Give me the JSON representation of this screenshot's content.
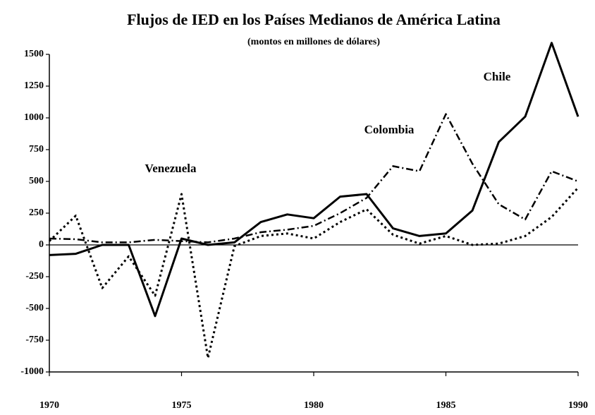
{
  "chart_data": {
    "type": "line",
    "title": "Flujos de IED en los Países Medianos de América Latina",
    "subtitle": "(montos en millones de dólares)",
    "x": [
      1970,
      1971,
      1972,
      1973,
      1974,
      1975,
      1976,
      1977,
      1978,
      1979,
      1980,
      1981,
      1982,
      1983,
      1984,
      1985,
      1986,
      1987,
      1988,
      1989,
      1990
    ],
    "series": [
      {
        "name": "Chile",
        "color": "#000000",
        "dash": "solid",
        "values": [
          -80,
          -70,
          0,
          0,
          -560,
          50,
          0,
          20,
          180,
          240,
          210,
          380,
          400,
          130,
          70,
          90,
          270,
          810,
          1010,
          1590,
          1010
        ]
      },
      {
        "name": "Colombia",
        "color": "#000000",
        "dash": "dashdot",
        "values": [
          50,
          45,
          20,
          20,
          40,
          30,
          20,
          50,
          100,
          120,
          150,
          250,
          370,
          620,
          580,
          1030,
          640,
          320,
          200,
          580,
          500
        ]
      },
      {
        "name": "Venezuela",
        "color": "#000000",
        "dash": "dot",
        "values": [
          30,
          230,
          -340,
          -90,
          -400,
          400,
          -890,
          -10,
          70,
          90,
          50,
          180,
          280,
          80,
          10,
          70,
          0,
          10,
          70,
          220,
          450
        ]
      }
    ],
    "xlim": [
      1970,
      1990
    ],
    "xticks": [
      1970,
      1975,
      1980,
      1985,
      1990
    ],
    "ylim": [
      -1000,
      1500
    ],
    "yticks": [
      -1000,
      -750,
      -500,
      -250,
      0,
      250,
      500,
      750,
      1000,
      1250,
      1500
    ]
  }
}
